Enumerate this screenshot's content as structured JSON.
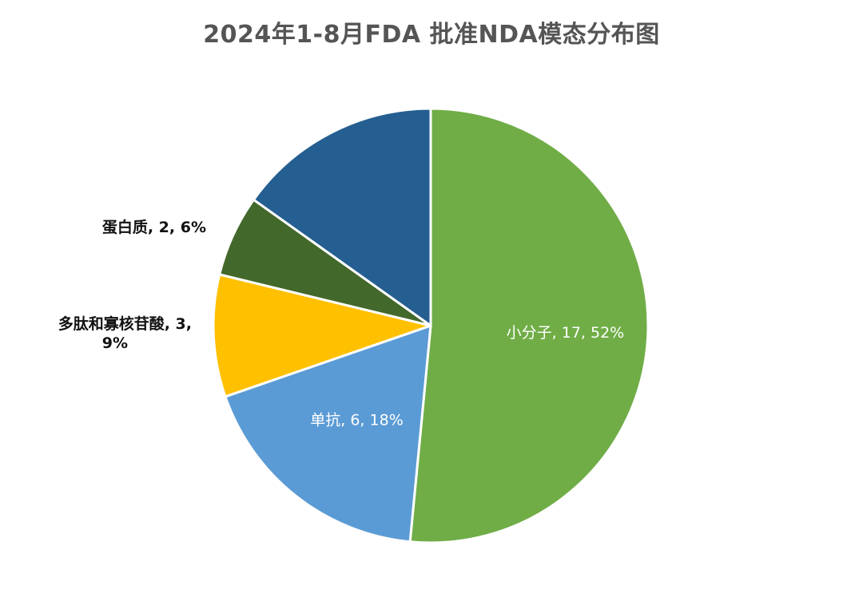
{
  "chart_data": {
    "type": "pie",
    "title": "2024年1-8月FDA 批准NDA模态分布图",
    "slices": [
      {
        "name": "小分子",
        "value": 17,
        "percent": "52%",
        "label": "小分子, 17, 52%",
        "color": "#70AD47",
        "label_lines": [
          "小分子, 17, 52%"
        ]
      },
      {
        "name": "单抗",
        "value": 6,
        "percent": "18%",
        "label": "单抗, 6, 18%",
        "color": "#5B9BD5",
        "label_lines": [
          "单抗, 6, 18%"
        ]
      },
      {
        "name": "多肽和寡核苷酸",
        "value": 3,
        "percent": "9%",
        "label": "多肽和寡核苷酸, 3, 9%",
        "color": "#FFC000",
        "label_lines": [
          "多肽和寡核苷酸, 3,",
          "9%"
        ]
      },
      {
        "name": "蛋白质",
        "value": 2,
        "percent": "6%",
        "label": "蛋白质, 2, 6%",
        "color": "#43682B",
        "label_lines": [
          "蛋白质, 2, 6%"
        ]
      },
      {
        "name": "",
        "value": 5,
        "percent": "",
        "label": "",
        "color": "#255E91",
        "label_lines": []
      }
    ],
    "start_angle_deg": 0,
    "direction": "clockwise",
    "legend": "none"
  }
}
